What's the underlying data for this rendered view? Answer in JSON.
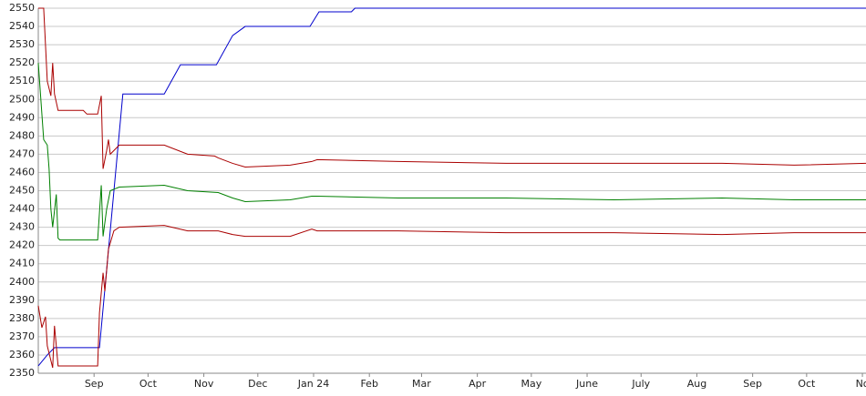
{
  "chart_data": {
    "type": "line",
    "xlim": [
      0,
      460
    ],
    "ylim": [
      2350,
      2550
    ],
    "yticks": [
      2350,
      2360,
      2370,
      2380,
      2390,
      2400,
      2410,
      2420,
      2430,
      2440,
      2450,
      2460,
      2470,
      2480,
      2490,
      2500,
      2510,
      2520,
      2530,
      2540,
      2550
    ],
    "xticks": [
      {
        "value": 31,
        "label": "Sep"
      },
      {
        "value": 61,
        "label": "Oct"
      },
      {
        "value": 92,
        "label": "Nov"
      },
      {
        "value": 122,
        "label": "Dec"
      },
      {
        "value": 153,
        "label": "Jan 24"
      },
      {
        "value": 184,
        "label": "Feb"
      },
      {
        "value": 213,
        "label": "Mar"
      },
      {
        "value": 244,
        "label": "Apr"
      },
      {
        "value": 274,
        "label": "May"
      },
      {
        "value": 305,
        "label": "June"
      },
      {
        "value": 335,
        "label": "July"
      },
      {
        "value": 366,
        "label": "Aug"
      },
      {
        "value": 397,
        "label": "Sep"
      },
      {
        "value": 427,
        "label": "Oct"
      },
      {
        "value": 458,
        "label": "No"
      }
    ],
    "grid": true,
    "series": [
      {
        "color": "#0000cc",
        "x": [
          0,
          5,
          9,
          34,
          47,
          70,
          79,
          99,
          108,
          115,
          151,
          156,
          174,
          176,
          460
        ],
        "values": [
          2354,
          2360,
          2364,
          2364,
          2503,
          2503,
          2519,
          2519,
          2535,
          2540,
          2540,
          2548,
          2548,
          2550,
          2550
        ]
      },
      {
        "color": "#aa0000",
        "x": [
          0,
          3,
          5,
          7,
          8,
          9,
          11,
          25,
          27,
          33,
          35,
          36,
          38,
          39,
          40,
          45,
          70,
          83,
          98,
          100,
          108,
          115,
          140,
          152,
          155,
          200,
          260,
          320,
          380,
          420,
          460
        ],
        "values": [
          2550,
          2550,
          2510,
          2502,
          2520,
          2503,
          2494,
          2494,
          2492,
          2492,
          2502,
          2462,
          2472,
          2478,
          2470,
          2475,
          2475,
          2470,
          2469,
          2468,
          2465,
          2463,
          2464,
          2466,
          2467,
          2466,
          2465,
          2465,
          2465,
          2464,
          2465
        ]
      },
      {
        "color": "#008000",
        "x": [
          0,
          3,
          5,
          6,
          7,
          8,
          10,
          11,
          12,
          33,
          35,
          36,
          38,
          40,
          45,
          70,
          83,
          100,
          108,
          115,
          140,
          152,
          155,
          200,
          260,
          320,
          380,
          420,
          460
        ],
        "values": [
          2520,
          2478,
          2475,
          2462,
          2440,
          2430,
          2448,
          2424,
          2423,
          2423,
          2453,
          2425,
          2440,
          2450,
          2452,
          2453,
          2450,
          2449,
          2446,
          2444,
          2445,
          2447,
          2447,
          2446,
          2446,
          2445,
          2446,
          2445,
          2445
        ]
      },
      {
        "color": "#aa0000",
        "x": [
          0,
          2,
          4,
          5,
          8,
          9,
          11,
          33,
          34,
          36,
          37,
          39,
          42,
          45,
          70,
          83,
          100,
          108,
          115,
          140,
          152,
          155,
          200,
          260,
          320,
          380,
          420,
          460
        ],
        "values": [
          2387,
          2375,
          2381,
          2365,
          2353,
          2376,
          2354,
          2354,
          2383,
          2405,
          2395,
          2418,
          2428,
          2430,
          2431,
          2428,
          2428,
          2426,
          2425,
          2425,
          2429,
          2428,
          2428,
          2427,
          2427,
          2426,
          2427,
          2427
        ]
      }
    ]
  }
}
